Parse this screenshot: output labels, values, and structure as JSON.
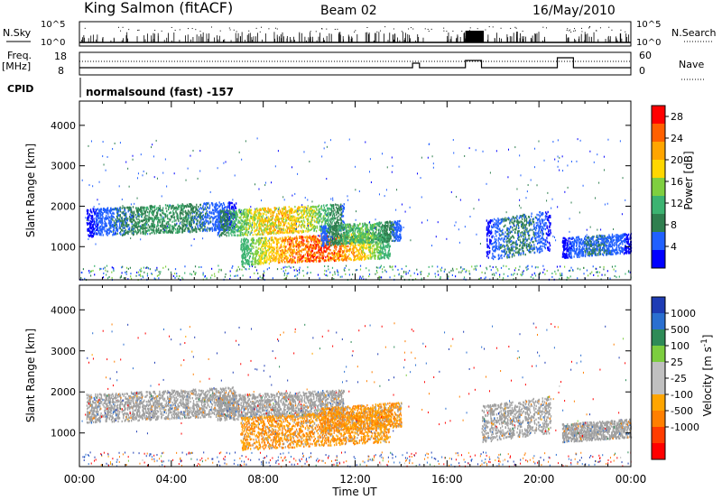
{
  "header": {
    "site": "King Salmon (fitACF)",
    "beam": "Beam 02",
    "date": "16/May/2010"
  },
  "strips": {
    "nsky_label": "N.Sky",
    "nsearch_label": "N.Search",
    "sky_ticks": [
      "10^5",
      "10^0"
    ],
    "freq_label_1": "Freq.",
    "freq_label_2": "[MHz]",
    "freq_ticks": [
      "18",
      "8"
    ],
    "nave_ticks": [
      "60",
      "0"
    ],
    "nave_label": "Nave",
    "cpid_label": "CPID",
    "cpid_text": "normalsound (fast) -157"
  },
  "colors": {
    "power": [
      "#0000ff",
      "#2060ff",
      "#2f7f4f",
      "#3cb371",
      "#7fcf40",
      "#ffd700",
      "#ffa500",
      "#ff6000",
      "#ff0000"
    ],
    "velocity": [
      "#1e3cb4",
      "#2a6fd0",
      "#2e8b57",
      "#7ccd3f",
      "#c0c0c0",
      "#c0c0c0",
      "#ffa500",
      "#ff7f00",
      "#ff3c00",
      "#ff0000"
    ],
    "ground_scatter": "#a0a0a0"
  },
  "chart_data": [
    {
      "type": "heatmap",
      "panel": "power",
      "xlabel": "Time UT",
      "ylabel": "Slant Range [km]",
      "x_ticks": [
        "00:00",
        "04:00",
        "08:00",
        "12:00",
        "16:00",
        "20:00",
        "00:00"
      ],
      "x_range_hours": [
        0,
        24
      ],
      "y_ticks": [
        1000,
        2000,
        3000,
        4000
      ],
      "y_range_km": [
        180,
        4600
      ],
      "colorbar": {
        "label": "Power [dB]",
        "ticks": [
          4,
          8,
          12,
          16,
          20,
          24,
          28
        ],
        "range": [
          0,
          30
        ]
      },
      "scatter_regions": [
        {
          "t_start": 0.3,
          "t_end": 6.8,
          "range_km": [
            1350,
            2050
          ],
          "power_db": [
            2,
            12
          ]
        },
        {
          "t_start": 6.0,
          "t_end": 11.5,
          "range_km": [
            1350,
            2000
          ],
          "power_db": [
            6,
            24
          ]
        },
        {
          "t_start": 7.0,
          "t_end": 13.5,
          "range_km": [
            650,
            1300
          ],
          "power_db": [
            10,
            30
          ]
        },
        {
          "t_start": 10.5,
          "t_end": 14.0,
          "range_km": [
            1100,
            1600
          ],
          "power_db": [
            4,
            16
          ]
        },
        {
          "t_start": 17.7,
          "t_end": 20.5,
          "range_km": [
            800,
            1800
          ],
          "power_db": [
            2,
            10
          ]
        },
        {
          "t_start": 21.0,
          "t_end": 24.0,
          "range_km": [
            800,
            1300
          ],
          "power_db": [
            2,
            8
          ]
        }
      ]
    },
    {
      "type": "heatmap",
      "panel": "velocity",
      "xlabel": "Time UT",
      "ylabel": "Slant Range [km]",
      "x_ticks": [
        "00:00",
        "04:00",
        "08:00",
        "12:00",
        "16:00",
        "20:00",
        "00:00"
      ],
      "x_range_hours": [
        0,
        24
      ],
      "y_ticks": [
        1000,
        2000,
        3000,
        4000
      ],
      "y_range_km": [
        180,
        4600
      ],
      "colorbar": {
        "label": "Velocity [m s^-1]",
        "ticks": [
          1000,
          500,
          100,
          25,
          -25,
          -100,
          -500,
          -1000
        ]
      },
      "scatter_regions": [
        {
          "t_start": 0.3,
          "t_end": 6.8,
          "range_km": [
            1350,
            2050
          ],
          "type": "ground"
        },
        {
          "t_start": 6.0,
          "t_end": 11.5,
          "range_km": [
            1400,
            2000
          ],
          "type": "ground"
        },
        {
          "t_start": 7.0,
          "t_end": 13.5,
          "range_km": [
            700,
            1500
          ],
          "velocity_ms": [
            -150,
            -50
          ]
        },
        {
          "t_start": 10.5,
          "t_end": 14.0,
          "range_km": [
            1100,
            1700
          ],
          "velocity_ms": [
            -150,
            -50
          ]
        },
        {
          "t_start": 17.5,
          "t_end": 20.5,
          "range_km": [
            900,
            1800
          ],
          "type": "ground"
        },
        {
          "t_start": 21.0,
          "t_end": 24.0,
          "range_km": [
            850,
            1300
          ],
          "type": "ground"
        }
      ]
    }
  ]
}
